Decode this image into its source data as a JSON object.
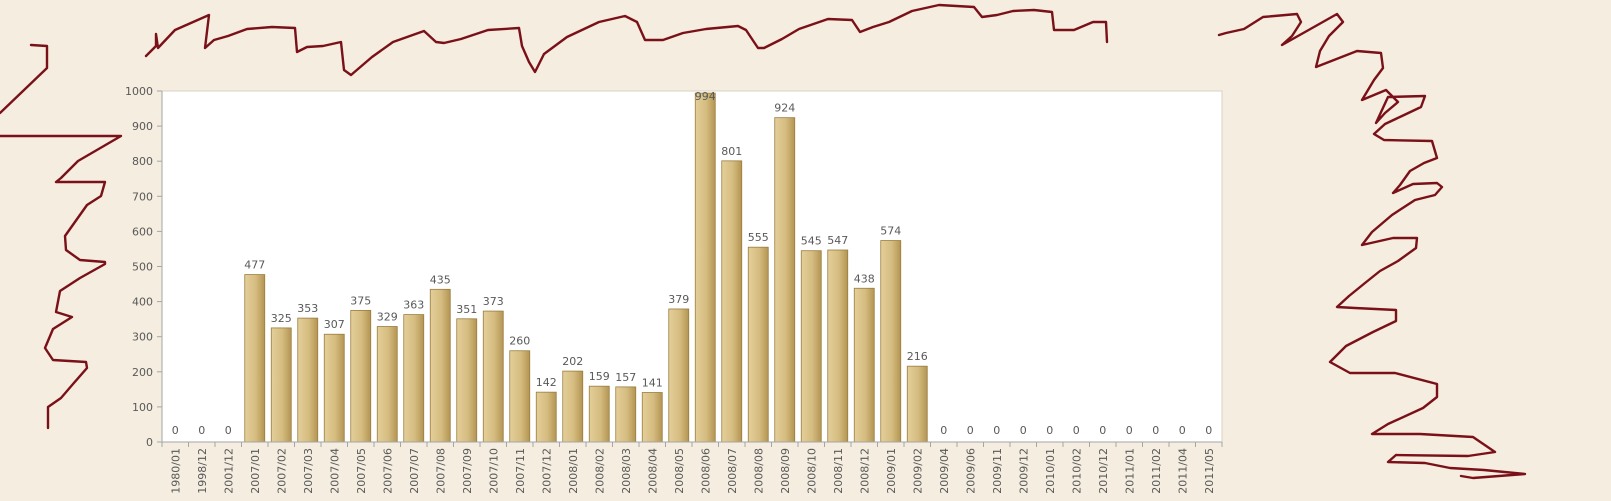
{
  "chart_data": {
    "type": "bar",
    "categories": [
      "1980/01",
      "1998/12",
      "2001/12",
      "2007/01",
      "2007/02",
      "2007/03",
      "2007/04",
      "2007/05",
      "2007/06",
      "2007/07",
      "2007/08",
      "2007/09",
      "2007/10",
      "2007/11",
      "2007/12",
      "2008/01",
      "2008/02",
      "2008/03",
      "2008/04",
      "2008/05",
      "2008/06",
      "2008/07",
      "2008/08",
      "2008/09",
      "2008/10",
      "2008/11",
      "2008/12",
      "2009/01",
      "2009/02",
      "2009/04",
      "2009/06",
      "2009/11",
      "2009/12",
      "2010/01",
      "2010/02",
      "2010/12",
      "2011/01",
      "2011/02",
      "2011/04",
      "2011/05"
    ],
    "values": [
      0,
      0,
      0,
      477,
      325,
      353,
      307,
      375,
      329,
      363,
      435,
      351,
      373,
      260,
      142,
      202,
      159,
      157,
      141,
      379,
      994,
      801,
      555,
      924,
      545,
      547,
      438,
      574,
      216,
      0,
      0,
      0,
      0,
      0,
      0,
      0,
      0,
      0,
      0,
      0
    ],
    "ylim": [
      0,
      1000
    ],
    "yticks": [
      0,
      100,
      200,
      300,
      400,
      500,
      600,
      700,
      800,
      900,
      1000
    ],
    "grid": false,
    "legend": "none",
    "colors": {
      "bar_light": "#e4cf9a",
      "bar_dark": "#b39553",
      "bar_edge": "#9a7d3e",
      "plot_bg": "#ffffff",
      "page_bg": "#f4ede0",
      "axis": "#a6a6a6",
      "scribble": "#7a1018"
    }
  }
}
